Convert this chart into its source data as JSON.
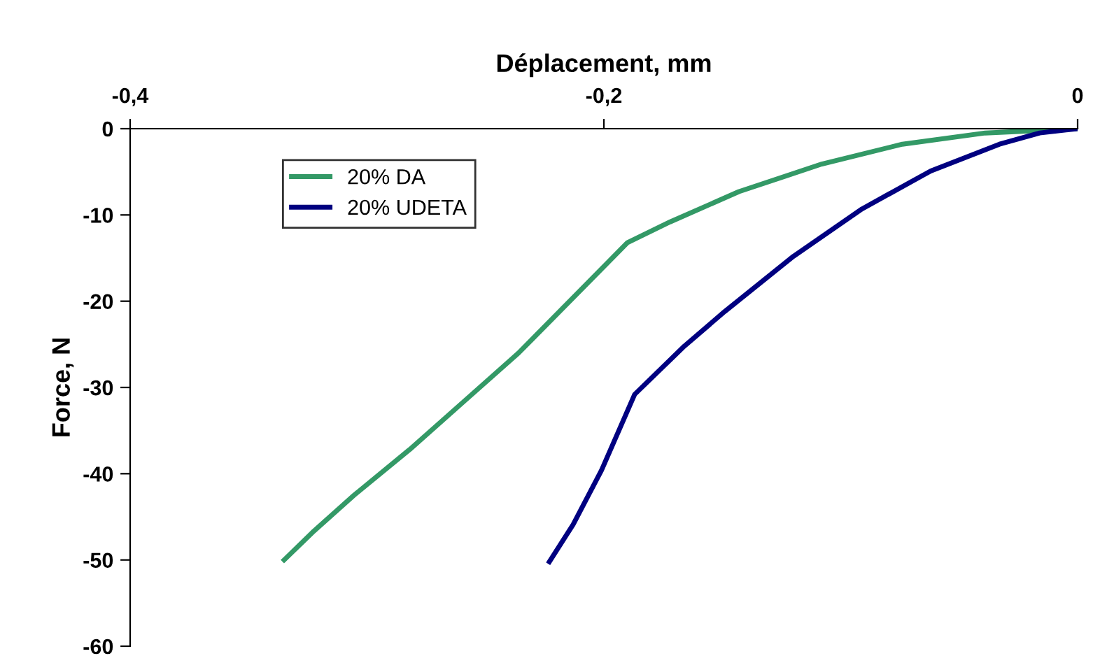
{
  "chart_data": {
    "type": "line",
    "xlabel": "Déplacement, mm",
    "ylabel": "Force, N",
    "xlim": [
      -0.4,
      0
    ],
    "xticks": [
      {
        "value": -0.4,
        "label": "-0,4"
      },
      {
        "value": -0.2,
        "label": "-0,2"
      },
      0
    ],
    "ylim": [
      -60,
      0
    ],
    "yticks": [
      -60,
      -50,
      -40,
      -30,
      -20,
      -10,
      0
    ],
    "grid": false,
    "legend": "top left",
    "line_style": "solid",
    "marker": "none",
    "series": [
      {
        "name": "20% DA",
        "color": "#339966",
        "x": [
          -0.335,
          -0.323,
          -0.3055,
          -0.282,
          -0.259,
          -0.236,
          -0.213,
          -0.19,
          -0.172,
          -0.143,
          -0.108,
          -0.074,
          -0.039,
          0
        ],
        "values": [
          -50,
          -46.8,
          -42.5,
          -37.2,
          -31.6,
          -26,
          -19.6,
          -13.2,
          -10.8,
          -7.3,
          -4.1,
          -1.8,
          -0.5,
          0
        ]
      },
      {
        "name": "20% UDETA",
        "color": "#000080",
        "x": [
          -0.223,
          -0.213,
          -0.201,
          -0.187,
          -0.166,
          -0.149,
          -0.12,
          -0.091,
          -0.062,
          -0.033,
          -0.016,
          0
        ],
        "values": [
          -50.2,
          -45.9,
          -39.6,
          -30.8,
          -25.2,
          -21.2,
          -14.8,
          -9.3,
          -4.9,
          -1.8,
          -0.5,
          0
        ]
      }
    ]
  }
}
